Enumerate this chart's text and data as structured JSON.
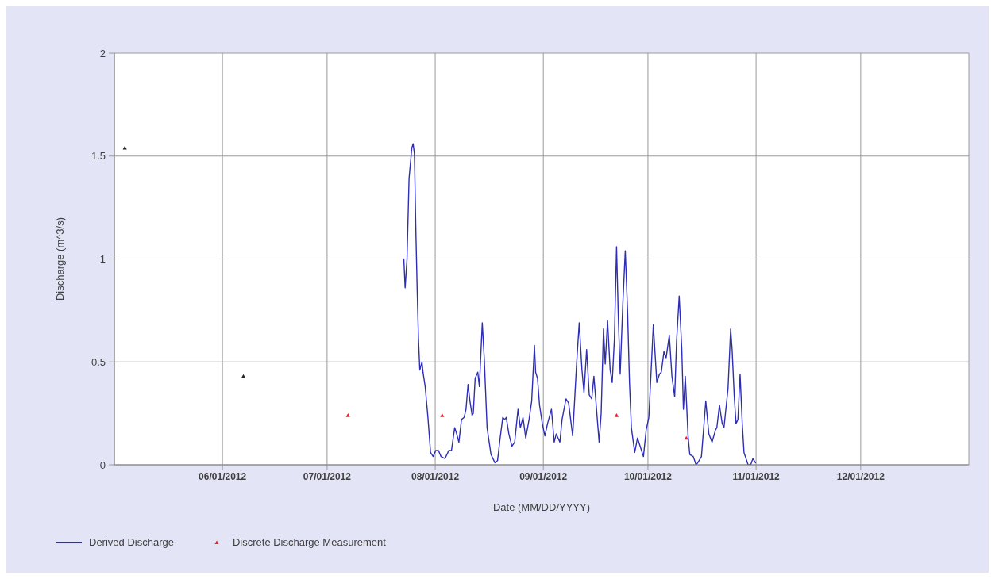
{
  "chart_data": {
    "type": "line",
    "xlabel": "Date (MM/DD/YYYY)",
    "ylabel": "Discharge (m^3/s)",
    "xlim": [
      "2012-05-01",
      "2013-01-01"
    ],
    "xticks": [
      {
        "value": "2012-06-01",
        "label": "06/01/2012"
      },
      {
        "value": "2012-07-01",
        "label": "07/01/2012"
      },
      {
        "value": "2012-08-01",
        "label": "08/01/2012"
      },
      {
        "value": "2012-09-01",
        "label": "09/01/2012"
      },
      {
        "value": "2012-10-01",
        "label": "10/01/2012"
      },
      {
        "value": "2012-11-01",
        "label": "11/01/2012"
      },
      {
        "value": "2012-12-01",
        "label": "12/01/2012"
      }
    ],
    "ylim": [
      0,
      2
    ],
    "yticks": [
      0,
      0.5,
      1,
      1.5,
      2
    ],
    "grid": true,
    "legend": "bottom left",
    "series": [
      {
        "name": "Derived Discharge",
        "color": "#2e2eb4",
        "x": [
          "2012-07-23T00:00",
          "2012-07-23T09:00",
          "2012-07-23T22:00",
          "2012-07-24T12:00",
          "2012-07-25T07:00",
          "2012-07-25T16:00",
          "2012-07-26T01:00",
          "2012-07-26T11:00",
          "2012-07-26T20:00",
          "2012-07-27T05:00",
          "2012-07-27T14:00",
          "2012-07-28T05:00",
          "2012-07-28T12:00",
          "2012-07-29T03:00",
          "2012-07-29T22:00",
          "2012-07-30T16:00",
          "2012-07-31T10:00",
          "2012-08-01T04:00",
          "2012-08-01T22:00",
          "2012-08-02T16:00",
          "2012-08-03T19:00",
          "2012-08-04T22:00",
          "2012-08-05T16:00",
          "2012-08-06T14:00",
          "2012-08-07T04:00",
          "2012-08-07T19:00",
          "2012-08-08T13:00",
          "2012-08-09T07:00",
          "2012-08-09T20:00",
          "2012-08-10T10:00",
          "2012-08-10T23:00",
          "2012-08-11T14:00",
          "2012-08-11T22:00",
          "2012-08-12T11:00",
          "2012-08-13T05:00",
          "2012-08-13T16:00",
          "2012-08-14T12:00",
          "2012-08-15T02:00",
          "2012-08-15T21:00",
          "2012-08-17T00:00",
          "2012-08-18T03:00",
          "2012-08-18T21:00",
          "2012-08-19T15:00",
          "2012-08-20T09:00",
          "2012-08-20T22:00",
          "2012-08-21T09:00",
          "2012-08-22T03:00",
          "2012-08-23T00:00",
          "2012-08-23T19:00",
          "2012-08-24T18:00",
          "2012-08-25T10:00",
          "2012-08-26T04:00",
          "2012-08-26T23:00",
          "2012-08-27T22:00",
          "2012-08-28T16:00",
          "2012-08-29T11:00",
          "2012-08-29T19:00",
          "2012-08-30T08:00",
          "2012-08-30T22:00",
          "2012-08-31T17:00",
          "2012-09-01T11:00",
          "2012-09-02T05:00",
          "2012-09-03T08:00",
          "2012-09-04T03:00",
          "2012-09-04T17:00",
          "2012-09-05T18:00",
          "2012-09-06T09:00",
          "2012-09-07T12:00",
          "2012-09-08T06:00",
          "2012-09-09T10:00",
          "2012-09-10T13:00",
          "2012-09-11T07:00",
          "2012-09-12T02:00",
          "2012-09-12T16:00",
          "2012-09-13T10:00",
          "2012-09-14T04:00",
          "2012-09-14T21:00",
          "2012-09-15T12:00",
          "2012-09-16T06:00",
          "2012-09-17T00:00",
          "2012-09-17T14:00",
          "2012-09-18T06:00",
          "2012-09-18T18:00",
          "2012-09-19T10:00",
          "2012-09-20T04:00",
          "2012-09-20T18:00",
          "2012-09-21T09:00",
          "2012-09-22T00:00",
          "2012-09-22T12:00",
          "2012-09-23T01:00",
          "2012-09-23T19:00",
          "2012-09-24T12:00",
          "2012-09-25T04:00",
          "2012-09-25T17:00",
          "2012-09-26T06:00",
          "2012-09-27T05:00",
          "2012-09-28T00:00",
          "2012-09-28T23:00",
          "2012-09-29T17:00",
          "2012-09-30T12:00",
          "2012-10-01T06:00",
          "2012-10-01T18:00",
          "2012-10-02T13:00",
          "2012-10-03T13:00",
          "2012-10-04T07:00",
          "2012-10-04T20:00",
          "2012-10-05T14:00",
          "2012-10-06T05:00",
          "2012-10-07T03:00",
          "2012-10-07T21:00",
          "2012-10-08T16:00",
          "2012-10-09T05:00",
          "2012-10-09T23:00",
          "2012-10-10T17:00",
          "2012-10-11T04:00",
          "2012-10-11T17:00",
          "2012-10-12T12:00",
          "2012-10-13T00:00",
          "2012-10-14T00:00",
          "2012-10-14T19:00",
          "2012-10-15T07:00",
          "2012-10-16T08:00",
          "2012-10-17T14:00",
          "2012-10-18T11:00",
          "2012-10-19T09:00",
          "2012-10-20T09:00",
          "2012-10-20T18:00",
          "2012-10-21T12:00",
          "2012-10-22T07:00",
          "2012-10-22T19:00",
          "2012-10-23T23:00",
          "2012-10-24T17:00",
          "2012-10-25T03:00",
          "2012-10-25T18:00",
          "2012-10-26T06:00",
          "2012-10-26T19:00",
          "2012-10-27T10:00",
          "2012-10-28T01:00",
          "2012-10-28T13:00",
          "2012-10-29T17:00",
          "2012-10-30T11:00",
          "2012-10-31T02:00",
          "2012-10-31T20:00"
        ],
        "values": [
          1.0,
          0.86,
          1.0,
          1.39,
          1.54,
          1.56,
          1.51,
          1.13,
          0.85,
          0.61,
          0.46,
          0.5,
          0.45,
          0.38,
          0.23,
          0.06,
          0.04,
          0.07,
          0.07,
          0.04,
          0.03,
          0.07,
          0.07,
          0.18,
          0.15,
          0.11,
          0.22,
          0.23,
          0.27,
          0.39,
          0.31,
          0.24,
          0.25,
          0.42,
          0.45,
          0.38,
          0.69,
          0.51,
          0.18,
          0.05,
          0.01,
          0.02,
          0.13,
          0.23,
          0.22,
          0.23,
          0.15,
          0.09,
          0.11,
          0.27,
          0.18,
          0.23,
          0.13,
          0.22,
          0.31,
          0.58,
          0.45,
          0.42,
          0.29,
          0.2,
          0.14,
          0.2,
          0.27,
          0.11,
          0.15,
          0.11,
          0.22,
          0.32,
          0.3,
          0.14,
          0.49,
          0.69,
          0.46,
          0.35,
          0.56,
          0.34,
          0.32,
          0.43,
          0.27,
          0.11,
          0.25,
          0.66,
          0.49,
          0.7,
          0.46,
          0.4,
          0.61,
          1.06,
          0.72,
          0.44,
          0.78,
          1.04,
          0.74,
          0.4,
          0.18,
          0.06,
          0.13,
          0.08,
          0.04,
          0.17,
          0.23,
          0.4,
          0.68,
          0.4,
          0.44,
          0.45,
          0.55,
          0.52,
          0.63,
          0.43,
          0.33,
          0.6,
          0.82,
          0.56,
          0.27,
          0.43,
          0.14,
          0.05,
          0.04,
          0.0,
          0.01,
          0.04,
          0.31,
          0.15,
          0.11,
          0.17,
          0.18,
          0.29,
          0.2,
          0.18,
          0.37,
          0.66,
          0.56,
          0.33,
          0.2,
          0.22,
          0.44,
          0.2,
          0.06,
          0.0,
          0.0,
          0.03,
          0.01
        ]
      },
      {
        "type": "scatter",
        "color": "#262626",
        "marker": "triangle",
        "x": [
          "2012-05-04",
          "2012-06-07"
        ],
        "values": [
          1.54,
          0.43
        ]
      },
      {
        "name": "Discrete Discharge Measurement",
        "type": "scatter",
        "color": "#e8212b",
        "marker": "triangle",
        "x": [
          "2012-07-07",
          "2012-08-03",
          "2012-09-22",
          "2012-10-12"
        ],
        "values": [
          0.24,
          0.24,
          0.24,
          0.13
        ]
      }
    ]
  }
}
